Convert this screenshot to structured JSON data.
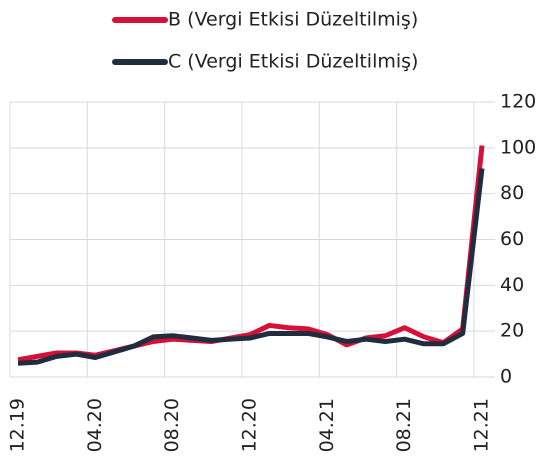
{
  "chart_data": {
    "type": "line",
    "categories": [
      "12.19",
      null,
      null,
      null,
      "04.20",
      null,
      null,
      null,
      "08.20",
      null,
      null,
      null,
      "12.20",
      null,
      null,
      null,
      "04.21",
      null,
      null,
      null,
      "08.21",
      null,
      null,
      null,
      "12.21"
    ],
    "series": [
      {
        "name": "B (Vergi Etkisi Düzeltilmiş)",
        "color": "#d5113a",
        "values": [
          7.5,
          9,
          10.5,
          10.5,
          9.5,
          11.5,
          13.5,
          15.5,
          16.5,
          16,
          15.5,
          17,
          18.5,
          22.5,
          21.5,
          21,
          18.5,
          14,
          17,
          18,
          21.5,
          17.5,
          15,
          21,
          101
        ]
      },
      {
        "name": "C (Vergi Etkisi Düzeltilmiş)",
        "color": "#1f2d3f",
        "values": [
          6,
          6.5,
          9,
          10,
          8.5,
          11,
          13.5,
          17.5,
          18,
          17,
          16,
          16.5,
          17,
          19,
          19,
          19,
          17.5,
          15.5,
          16.5,
          15.5,
          16.5,
          14.5,
          14.5,
          19,
          91
        ]
      }
    ],
    "ylim": [
      0,
      120
    ],
    "yticks": [
      0,
      20,
      40,
      60,
      80,
      100,
      120
    ],
    "grid": true,
    "legend": "top"
  }
}
